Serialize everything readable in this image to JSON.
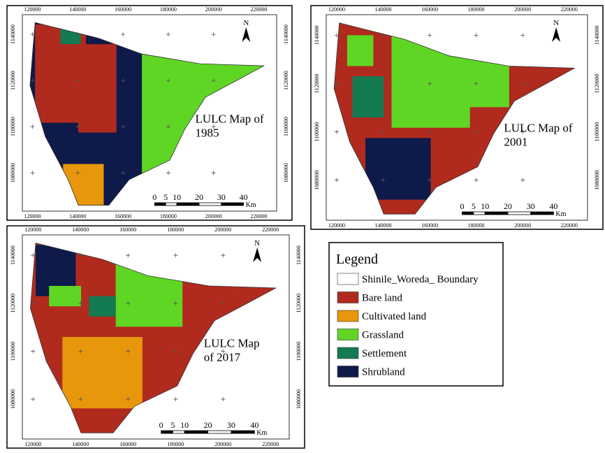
{
  "maps": [
    {
      "title": [
        "LULC Map of",
        "1985"
      ],
      "north": "N",
      "x_labels": [
        120000,
        140000,
        160000,
        180000,
        200000,
        220000
      ],
      "y_labels": [
        1140000,
        1120000,
        1100000,
        1080000
      ],
      "scale": {
        "ticks": [
          0,
          5,
          10,
          20,
          30,
          40
        ],
        "unit": "Km"
      }
    },
    {
      "title": [
        "LULC Map of",
        "2001"
      ],
      "north": "N",
      "x_labels": [
        120000,
        140000,
        160000,
        180000,
        200000,
        220000
      ],
      "y_labels": [
        1140000,
        1120000,
        1100000,
        1080000
      ],
      "scale": {
        "ticks": [
          0,
          5,
          10,
          20,
          30,
          40
        ],
        "unit": "Km"
      }
    },
    {
      "title": [
        "LULC Map",
        "of 2017"
      ],
      "north": "N",
      "x_labels": [
        120000,
        140000,
        160000,
        180000,
        200000,
        220000
      ],
      "y_labels": [
        1140000,
        1120000,
        1100000,
        1080000
      ],
      "scale": {
        "ticks": [
          0,
          5,
          10,
          20,
          30,
          40
        ],
        "unit": "Km"
      }
    }
  ],
  "legend": {
    "title": "Legend",
    "items": [
      {
        "label": "Shinile_Woreda_ Boundary",
        "color": "#ffffff"
      },
      {
        "label": "Bare land",
        "color": "#b02a1e"
      },
      {
        "label": "Cultivated land",
        "color": "#e8960c"
      },
      {
        "label": "Grassland",
        "color": "#5fd624"
      },
      {
        "label": "Settlement",
        "color": "#137a52"
      },
      {
        "label": "Shrubland",
        "color": "#0d1a4a"
      }
    ]
  }
}
